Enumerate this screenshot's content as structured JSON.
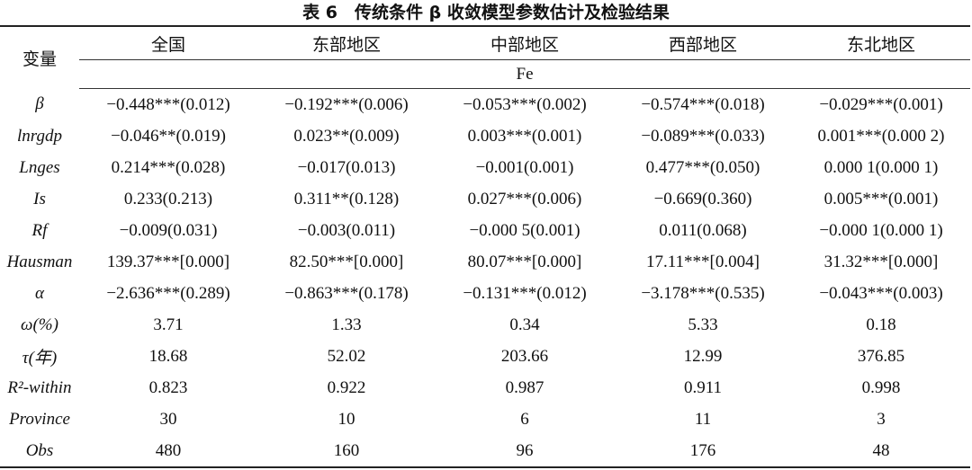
{
  "title": "表 6　传统条件 β 收敛模型参数估计及检验结果",
  "table": {
    "corner": "变量",
    "columns": [
      "全国",
      "东部地区",
      "中部地区",
      "西部地区",
      "东北地区"
    ],
    "subheader": "Fe",
    "rows": [
      {
        "label": "β",
        "cells": [
          "−0.448***(0.012)",
          "−0.192***(0.006)",
          "−0.053***(0.002)",
          "−0.574***(0.018)",
          "−0.029***(0.001)"
        ]
      },
      {
        "label": "lnrgdp",
        "cells": [
          "−0.046**(0.019)",
          "0.023**(0.009)",
          "0.003***(0.001)",
          "−0.089***(0.033)",
          "0.001***(0.000 2)"
        ]
      },
      {
        "label": "Lnges",
        "cells": [
          "0.214***(0.028)",
          "−0.017(0.013)",
          "−0.001(0.001)",
          "0.477***(0.050)",
          "0.000 1(0.000 1)"
        ]
      },
      {
        "label": "Is",
        "cells": [
          "0.233(0.213)",
          "0.311**(0.128)",
          "0.027***(0.006)",
          "−0.669(0.360)",
          "0.005***(0.001)"
        ]
      },
      {
        "label": "Rf",
        "cells": [
          "−0.009(0.031)",
          "−0.003(0.011)",
          "−0.000 5(0.001)",
          "0.011(0.068)",
          "−0.000 1(0.000 1)"
        ]
      },
      {
        "label": "Hausman",
        "cells": [
          "139.37***[0.000]",
          "82.50***[0.000]",
          "80.07***[0.000]",
          "17.11***[0.004]",
          "31.32***[0.000]"
        ]
      },
      {
        "label": "α",
        "cells": [
          "−2.636***(0.289)",
          "−0.863***(0.178)",
          "−0.131***(0.012)",
          "−3.178***(0.535)",
          "−0.043***(0.003)"
        ]
      },
      {
        "label": "ω(%)",
        "cells": [
          "3.71",
          "1.33",
          "0.34",
          "5.33",
          "0.18"
        ]
      },
      {
        "label": "τ(年)",
        "cells": [
          "18.68",
          "52.02",
          "203.66",
          "12.99",
          "376.85"
        ]
      },
      {
        "label": "R²-within",
        "cells": [
          "0.823",
          "0.922",
          "0.987",
          "0.911",
          "0.998"
        ]
      },
      {
        "label": "Province",
        "cells": [
          "30",
          "10",
          "6",
          "11",
          "3"
        ]
      },
      {
        "label": "Obs",
        "cells": [
          "480",
          "160",
          "96",
          "176",
          "48"
        ]
      }
    ]
  }
}
